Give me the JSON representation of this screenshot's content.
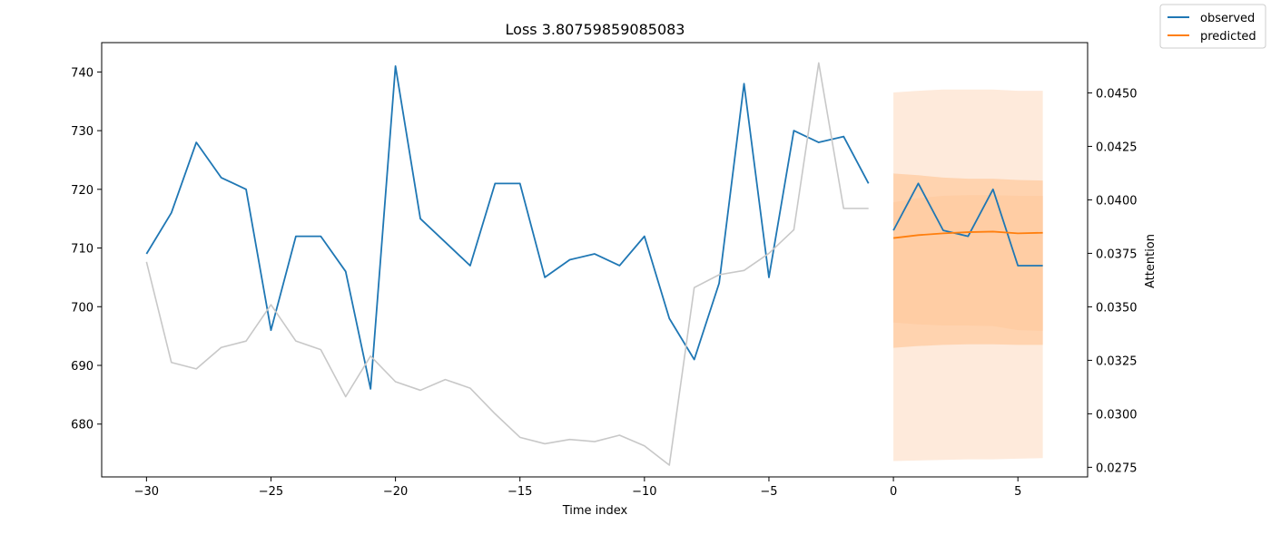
{
  "chart_data": {
    "type": "line",
    "title": "Loss 3.80759859085083",
    "xlabel": "Time index",
    "ylabel": "",
    "y2label": "Attention",
    "xlim": [
      -31.8,
      7.8
    ],
    "ylim": [
      671.0,
      745.0
    ],
    "y2lim": [
      0.02705,
      0.04735
    ],
    "xticks": [
      -30,
      -25,
      -20,
      -15,
      -10,
      -5,
      0,
      5
    ],
    "xtick_labels": [
      "−30",
      "−25",
      "−20",
      "−15",
      "−10",
      "−5",
      "0",
      "5"
    ],
    "yticks": [
      680,
      690,
      700,
      710,
      720,
      730,
      740
    ],
    "y2ticks": [
      0.0275,
      0.03,
      0.0325,
      0.035,
      0.0375,
      0.04,
      0.0425,
      0.045
    ],
    "y2tick_labels": [
      "0.0275",
      "0.0300",
      "0.0325",
      "0.0350",
      "0.0375",
      "0.0400",
      "0.0425",
      "0.0450"
    ],
    "grid": false,
    "legend_position": "top-right (outside)",
    "colors": {
      "observed": "#1f77b4",
      "predicted": "#ff7f0e",
      "attention": "#c8c8c8",
      "band_inner": "#ffcba0",
      "band_outer": "#feeadb"
    },
    "series": [
      {
        "name": "observed",
        "x": [
          -30,
          -29,
          -28,
          -27,
          -26,
          -25,
          -24,
          -23,
          -22,
          -21,
          -20,
          -19,
          -18,
          -17,
          -16,
          -15,
          -14,
          -13,
          -12,
          -11,
          -10,
          -9,
          -8,
          -7,
          -6,
          -5,
          -4,
          -3,
          -2,
          -1
        ],
        "values": [
          709,
          716,
          728,
          722,
          720,
          696,
          712,
          712,
          706,
          686,
          741,
          715,
          711,
          707,
          721,
          721,
          705,
          708,
          709,
          707,
          712,
          698,
          691,
          704,
          738,
          705,
          730,
          728,
          729,
          721
        ]
      },
      {
        "name": "observed",
        "x": [
          0,
          1,
          2,
          3,
          4,
          5,
          6
        ],
        "values": [
          713,
          721,
          713,
          712,
          720,
          707,
          707
        ]
      },
      {
        "name": "predicted",
        "x": [
          0,
          1,
          2,
          3,
          4,
          5,
          6
        ],
        "values": [
          711.7,
          712.2,
          712.5,
          712.7,
          712.8,
          712.5,
          712.6
        ]
      },
      {
        "name": "",
        "axis": "right",
        "x": [
          -30,
          -29,
          -28,
          -27,
          -26,
          -25,
          -24,
          -23,
          -22,
          -21,
          -20,
          -19,
          -18,
          -17,
          -16,
          -15,
          -14,
          -13,
          -12,
          -11,
          -10,
          -9,
          -8,
          -7,
          -6,
          -5,
          -4,
          -3,
          -2,
          -1
        ],
        "values": [
          0.0371,
          0.0324,
          0.0321,
          0.0331,
          0.0334,
          0.0351,
          0.0334,
          0.033,
          0.0308,
          0.0327,
          0.0315,
          0.0311,
          0.0316,
          0.0312,
          0.03,
          0.0289,
          0.0286,
          0.0288,
          0.0287,
          0.029,
          0.0285,
          0.0276,
          0.0359,
          0.0365,
          0.0367,
          0.0375,
          0.0386,
          0.0464,
          0.0396,
          0.0396
        ]
      }
    ],
    "bands": [
      {
        "name": "",
        "x": [
          0,
          1,
          2,
          3,
          4,
          5,
          6
        ],
        "lower": [
          673.7,
          673.8,
          673.9,
          674.0,
          674.0,
          674.1,
          674.2
        ],
        "upper": [
          736.5,
          736.8,
          737.0,
          737.0,
          737.0,
          736.8,
          736.8
        ]
      },
      {
        "name": "",
        "x": [
          0,
          1,
          2,
          3,
          4,
          5,
          6
        ],
        "lower": [
          693.0,
          693.3,
          693.5,
          693.6,
          693.6,
          693.5,
          693.5
        ],
        "upper": [
          722.7,
          722.4,
          722.0,
          721.8,
          721.8,
          721.6,
          721.5
        ]
      },
      {
        "name": "",
        "x": [
          0,
          1,
          2,
          3,
          4,
          5,
          6
        ],
        "lower": [
          697.3,
          697.0,
          696.8,
          696.8,
          696.7,
          696.0,
          695.9
        ],
        "upper": [
          717.8,
          718.5,
          718.9,
          719.0,
          719.0,
          718.9,
          718.9
        ]
      }
    ]
  }
}
